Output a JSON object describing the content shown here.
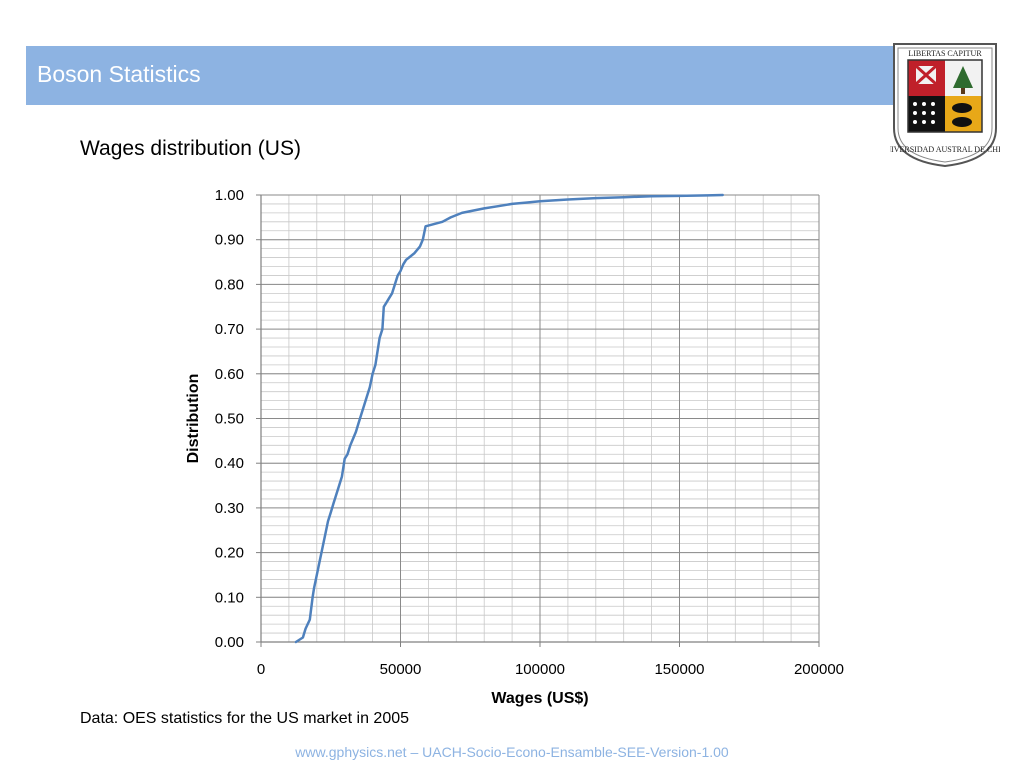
{
  "header": {
    "title": "Boson Statistics"
  },
  "logo": {
    "icon": "university-seal-icon",
    "motto": "LIBERTAS CAPITUR",
    "ring_text": "UNIVERSIDAD AUSTRAL DE CHILE"
  },
  "footnote": "Data: OES statistics for the US market in 2005",
  "footer": "www.gphysics.net – UACH-Socio-Econo-Ensamble-SEE-Version-1.00",
  "colors": {
    "header_bar": "#8db3e2",
    "series_line": "#4f81bd",
    "footer_text": "#8db3e2"
  },
  "chart_data": {
    "type": "line",
    "title": "Wages distribution (US)",
    "xlabel": "Wages (US$)",
    "ylabel": "Distribution",
    "xlim": [
      0,
      200000
    ],
    "ylim": [
      0,
      1
    ],
    "x_ticks": [
      "0",
      "50000",
      "100000",
      "150000",
      "200000"
    ],
    "y_ticks": [
      "0.00",
      "0.10",
      "0.20",
      "0.30",
      "0.40",
      "0.50",
      "0.60",
      "0.70",
      "0.80",
      "0.90",
      "1.00"
    ],
    "grid": true,
    "legend": "none",
    "series": [
      {
        "x": [
          12500,
          15000,
          16000,
          17500,
          18500,
          19000,
          20000,
          21000,
          22000,
          23000,
          24000,
          25000,
          26000,
          27000,
          28000,
          29000,
          29500,
          30000,
          31000,
          32000,
          33000,
          34000,
          35000,
          36000,
          37000,
          38000,
          39000,
          40000,
          41000,
          42000,
          42500,
          43500,
          44000,
          45000,
          46000,
          47000,
          48000,
          49000,
          50000,
          51000,
          52000,
          53000,
          55000,
          57000,
          58000,
          59000,
          62000,
          65000,
          68000,
          72000,
          76000,
          80000,
          85000,
          90000,
          95000,
          100000,
          110000,
          120000,
          130000,
          140000,
          150000,
          160000,
          165500
        ],
        "y": [
          0.0,
          0.01,
          0.03,
          0.05,
          0.1,
          0.12,
          0.15,
          0.18,
          0.21,
          0.24,
          0.27,
          0.29,
          0.31,
          0.33,
          0.35,
          0.37,
          0.39,
          0.41,
          0.42,
          0.44,
          0.455,
          0.47,
          0.49,
          0.51,
          0.53,
          0.55,
          0.57,
          0.6,
          0.62,
          0.66,
          0.68,
          0.7,
          0.75,
          0.76,
          0.77,
          0.78,
          0.8,
          0.82,
          0.83,
          0.845,
          0.855,
          0.86,
          0.87,
          0.885,
          0.9,
          0.93,
          0.935,
          0.94,
          0.95,
          0.96,
          0.965,
          0.97,
          0.975,
          0.98,
          0.983,
          0.986,
          0.99,
          0.993,
          0.995,
          0.997,
          0.998,
          0.999,
          1.0
        ]
      }
    ]
  }
}
